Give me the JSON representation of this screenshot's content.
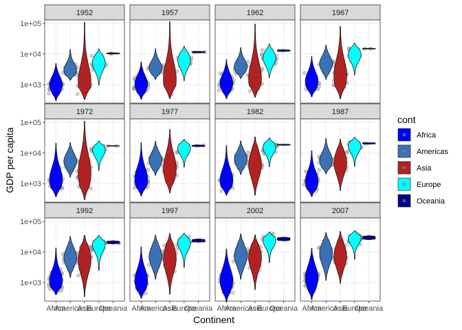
{
  "chart_data": {
    "type": "violin",
    "title": "",
    "xlabel": "Continent",
    "ylabel": "GDP per capita",
    "y_scale": "log10",
    "ylim": [
      250,
      130000
    ],
    "y_ticks": [
      1000,
      10000,
      100000
    ],
    "y_tick_labels": [
      "1e+03",
      "1e+04",
      "1e+05"
    ],
    "categories": [
      "Africa",
      "Americas",
      "Asia",
      "Europe",
      "Oceania"
    ],
    "facets": [
      "1952",
      "1957",
      "1962",
      "1967",
      "1972",
      "1977",
      "1982",
      "1987",
      "1992",
      "1997",
      "2002",
      "2007"
    ],
    "grid": true,
    "legend": {
      "title": "cont",
      "placement": "right",
      "entries": [
        {
          "label": "Africa",
          "color": "#0000ff"
        },
        {
          "label": "Americas",
          "color": "#3a72b5"
        },
        {
          "label": "Asia",
          "color": "#b22222"
        },
        {
          "label": "Europe",
          "color": "#00ffff"
        },
        {
          "label": "Oceania",
          "color": "#00008b"
        }
      ]
    },
    "point_color": "#999999",
    "summary": {
      "1952": {
        "Africa": [
          300,
          1000,
          4900
        ],
        "Americas": [
          1400,
          3000,
          14000
        ],
        "Asia": [
          330,
          1200,
          108000
        ],
        "Europe": [
          970,
          5100,
          14700
        ],
        "Oceania": [
          10000,
          10500,
          11000
        ]
      },
      "1957": {
        "Africa": [
          330,
          1050,
          5500
        ],
        "Americas": [
          1500,
          3600,
          14800
        ],
        "Asia": [
          350,
          1500,
          114000
        ],
        "Europe": [
          1350,
          6200,
          17900
        ],
        "Oceania": [
          10900,
          11500,
          12300
        ]
      },
      "1962": {
        "Africa": [
          350,
          1130,
          6600
        ],
        "Americas": [
          1600,
          3900,
          16200
        ],
        "Asia": [
          390,
          1600,
          95000
        ],
        "Europe": [
          1700,
          7400,
          21000
        ],
        "Oceania": [
          12200,
          13000,
          13900
        ]
      },
      "1967": {
        "Africa": [
          400,
          1300,
          8400
        ],
        "Americas": [
          1500,
          4800,
          19500
        ],
        "Asia": [
          350,
          2000,
          80000
        ],
        "Europe": [
          2100,
          9500,
          22900
        ],
        "Oceania": [
          14500,
          15000,
          15500
        ]
      },
      "1972": {
        "Africa": [
          370,
          1400,
          21000
        ],
        "Americas": [
          1650,
          5400,
          21800
        ],
        "Asia": [
          300,
          2300,
          109000
        ],
        "Europe": [
          2700,
          12300,
          25000
        ],
        "Oceania": [
          16700,
          17000,
          17500
        ]
      },
      "1977": {
        "Africa": [
          400,
          1400,
          21600
        ],
        "Americas": [
          1900,
          5900,
          24000
        ],
        "Asia": [
          500,
          3200,
          59000
        ],
        "Europe": [
          3500,
          14100,
          28000
        ],
        "Oceania": [
          16200,
          17500,
          18400
        ]
      },
      "1982": {
        "Africa": [
          420,
          1300,
          17400
        ],
        "Americas": [
          2000,
          6300,
          25000
        ],
        "Asia": [
          420,
          4200,
          33700
        ],
        "Europe": [
          3600,
          15000,
          31000
        ],
        "Oceania": [
          17900,
          18500,
          19500
        ]
      },
      "1987": {
        "Africa": [
          380,
          1200,
          11900
        ],
        "Americas": [
          2100,
          5800,
          29900
        ],
        "Asia": [
          600,
          4800,
          28100
        ],
        "Europe": [
          3700,
          16500,
          33000
        ],
        "Oceania": [
          19500,
          20500,
          21900
        ]
      },
      "1992": {
        "Africa": [
          400,
          1160,
          13500
        ],
        "Americas": [
          1500,
          6600,
          32000
        ],
        "Asia": [
          350,
          5500,
          34900
        ],
        "Europe": [
          2500,
          17600,
          34900
        ],
        "Oceania": [
          18400,
          20000,
          23400
        ]
      },
      "1997": {
        "Africa": [
          310,
          1180,
          14700
        ],
        "Americas": [
          1300,
          7100,
          35800
        ],
        "Asia": [
          420,
          6000,
          40300
        ],
        "Europe": [
          3200,
          19900,
          41300
        ],
        "Oceania": [
          21000,
          23000,
          26900
        ]
      },
      "2002": {
        "Africa": [
          240,
          1200,
          12500
        ],
        "Americas": [
          1300,
          7500,
          39100
        ],
        "Asia": [
          600,
          6500,
          36000
        ],
        "Europe": [
          4600,
          23700,
          44700
        ],
        "Oceania": [
          23200,
          26000,
          30700
        ]
      },
      "2007": {
        "Africa": [
          280,
          1450,
          13200
        ],
        "Americas": [
          1200,
          8900,
          42950
        ],
        "Asia": [
          950,
          7400,
          47300
        ],
        "Europe": [
          5900,
          28000,
          49400
        ],
        "Oceania": [
          25200,
          29000,
          34400
        ]
      }
    }
  }
}
